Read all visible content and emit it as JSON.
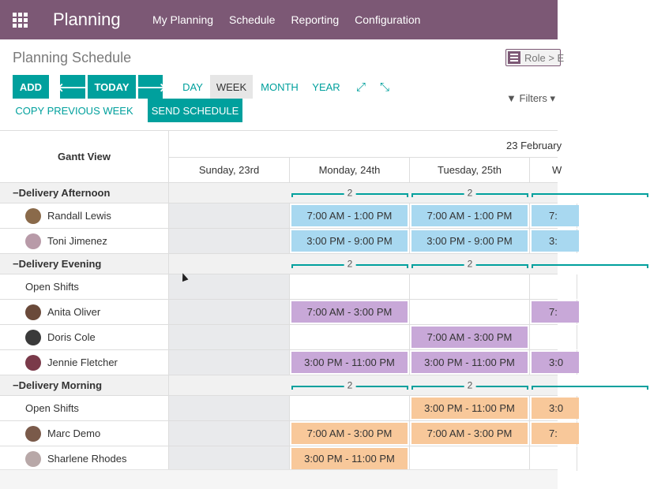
{
  "navbar": {
    "app_name": "Planning",
    "menu": [
      "My Planning",
      "Schedule",
      "Reporting",
      "Configuration"
    ]
  },
  "control_panel": {
    "title": "Planning Schedule",
    "groupby_badge": "Role > E",
    "add_label": "ADD",
    "prev_arrow": "🡐",
    "today_label": "TODAY",
    "next_arrow": "🡒",
    "scales": [
      "DAY",
      "WEEK",
      "MONTH",
      "YEAR"
    ],
    "active_scale": "WEEK",
    "expand_icon": "expand-icon",
    "collapse_icon": "collapse-icon",
    "copy_previous_label": "COPY PREVIOUS WEEK",
    "send_schedule_label": "SEND SCHEDULE",
    "filters_label": "Filters"
  },
  "gantt": {
    "view_title": "Gantt View",
    "month_label": "23 February",
    "days": [
      "Sunday, 23rd",
      "Monday, 24th",
      "Tuesday, 25th",
      "W"
    ],
    "colors": {
      "blue": "#a8d8f0",
      "purple": "#c8a8d8",
      "orange": "#f8c89a",
      "accent": "#00a09d"
    },
    "groups": [
      {
        "name": "Delivery Afternoon",
        "totals": [
          "2",
          "2"
        ],
        "rows": [
          {
            "name": "Randall Lewis",
            "avatar": "#8a6a4a",
            "shifts": {
              "mon": "7:00 AM - 1:00 PM",
              "tue": "7:00 AM - 1:00 PM",
              "wed": "7:"
            },
            "color": "blue"
          },
          {
            "name": "Toni Jimenez",
            "avatar": "#b89aa8",
            "shifts": {
              "mon": "3:00 PM - 9:00 PM",
              "tue": "3:00 PM - 9:00 PM",
              "wed": "3:"
            },
            "color": "blue"
          }
        ]
      },
      {
        "name": "Delivery Evening",
        "totals": [
          "2",
          "2"
        ],
        "rows": [
          {
            "name": "Open Shifts",
            "avatar": "",
            "shifts": {},
            "color": "purple"
          },
          {
            "name": "Anita Oliver",
            "avatar": "#6a4a3a",
            "shifts": {
              "mon": "7:00 AM - 3:00 PM",
              "wed": "7:"
            },
            "color": "purple"
          },
          {
            "name": "Doris Cole",
            "avatar": "#3a3a3a",
            "shifts": {
              "tue": "7:00 AM - 3:00 PM"
            },
            "color": "purple"
          },
          {
            "name": "Jennie Fletcher",
            "avatar": "#7a3a4a",
            "shifts": {
              "mon": "3:00 PM - 11:00 PM",
              "tue": "3:00 PM - 11:00 PM",
              "wed": "3:0"
            },
            "color": "purple"
          }
        ]
      },
      {
        "name": "Delivery Morning",
        "totals": [
          "2",
          "2"
        ],
        "rows": [
          {
            "name": "Open Shifts",
            "avatar": "",
            "shifts": {
              "tue": "3:00 PM - 11:00 PM",
              "wed": "3:0"
            },
            "color": "orange"
          },
          {
            "name": "Marc Demo",
            "avatar": "#7a5a4a",
            "shifts": {
              "mon": "7:00 AM - 3:00 PM",
              "tue": "7:00 AM - 3:00 PM",
              "wed": "7:"
            },
            "color": "orange"
          },
          {
            "name": "Sharlene Rhodes",
            "avatar": "#b8a8a8",
            "shifts": {
              "mon": "3:00 PM - 11:00 PM"
            },
            "color": "orange"
          }
        ]
      }
    ]
  }
}
